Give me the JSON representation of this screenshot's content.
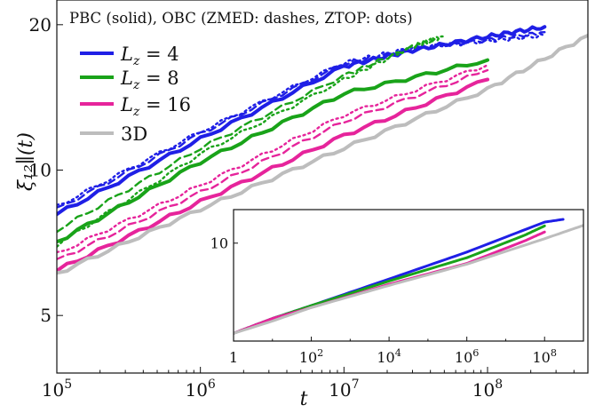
{
  "chart_data": [
    {
      "type": "line",
      "annotation": "PBC (solid), OBC (ZMED: dashes, ZTOP: dots)",
      "xlabel": "t",
      "ylabel": "ξ₁₂∥(t)",
      "xscale": "log",
      "yscale": "log",
      "xlim": [
        100000,
        500000000
      ],
      "ylim": [
        3.8,
        22.5
      ],
      "xticks": [
        {
          "value": 100000,
          "base": "10",
          "exp": "5"
        },
        {
          "value": 1000000,
          "base": "10",
          "exp": "6"
        },
        {
          "value": 10000000,
          "base": "10",
          "exp": "7"
        },
        {
          "value": 100000000,
          "base": "10",
          "exp": "8"
        }
      ],
      "yticks": [
        {
          "value": 5,
          "label": "5"
        },
        {
          "value": 10,
          "label": "10"
        },
        {
          "value": 20,
          "label": "20"
        }
      ],
      "legend": {
        "placement": "upper-left",
        "entries": [
          {
            "name": "L_z = 4",
            "prefix": "L",
            "sub": "z",
            "suffix": " = 4",
            "color": "#1f1fe6"
          },
          {
            "name": "L_z = 8",
            "prefix": "L",
            "sub": "z",
            "suffix": " = 8",
            "color": "#19a319"
          },
          {
            "name": "L_z = 16",
            "prefix": "L",
            "sub": "z",
            "suffix": " = 16",
            "color": "#e6249b"
          },
          {
            "name": "3D",
            "prefix": "3D",
            "sub": "",
            "suffix": "",
            "color": "#bdbdbd"
          }
        ]
      },
      "series": [
        {
          "name": "L_z = 4",
          "style": "solid",
          "color": "#1f1fe6",
          "x": [
            100000,
            1000000,
            10000000,
            30000000,
            100000000,
            250000000
          ],
          "y": [
            8.1,
            11.6,
            16.4,
            17.7,
            18.9,
            19.8
          ]
        },
        {
          "name": "L_z = 4",
          "style": "dashed",
          "color": "#1f1fe6",
          "x": [
            100000,
            1000000,
            10000000,
            30000000,
            100000000,
            250000000
          ],
          "y": [
            8.3,
            11.9,
            16.6,
            17.8,
            18.6,
            19.3
          ]
        },
        {
          "name": "L_z = 4",
          "style": "dotted",
          "color": "#1f1fe6",
          "x": [
            100000,
            1000000,
            10000000,
            30000000,
            100000000,
            250000000
          ],
          "y": [
            8.4,
            12.0,
            16.7,
            17.9,
            18.5,
            19.0
          ]
        },
        {
          "name": "L_z = 8",
          "style": "solid",
          "color": "#19a319",
          "x": [
            100000,
            1000000,
            10000000,
            100000000
          ],
          "y": [
            7.1,
            10.4,
            14.4,
            16.9
          ]
        },
        {
          "name": "L_z = 8",
          "style": "dashed",
          "color": "#19a319",
          "x": [
            100000,
            1000000,
            10000000,
            30000000,
            45000000
          ],
          "y": [
            7.5,
            11.1,
            15.7,
            18.0,
            18.8
          ]
        },
        {
          "name": "L_z = 8",
          "style": "dotted",
          "color": "#19a319",
          "x": [
            100000,
            1000000,
            10000000,
            30000000,
            50000000
          ],
          "y": [
            7.0,
            10.8,
            15.4,
            18.0,
            18.9
          ]
        },
        {
          "name": "L_z = 16",
          "style": "solid",
          "color": "#e6249b",
          "x": [
            100000,
            1000000,
            10000000,
            100000000
          ],
          "y": [
            6.2,
            8.6,
            11.8,
            15.4
          ]
        },
        {
          "name": "L_z = 16",
          "style": "dashed",
          "color": "#e6249b",
          "x": [
            100000,
            1000000,
            10000000,
            100000000
          ],
          "y": [
            6.5,
            9.0,
            12.6,
            16.1
          ]
        },
        {
          "name": "L_z = 16",
          "style": "dotted",
          "color": "#e6249b",
          "x": [
            100000,
            1000000,
            10000000,
            100000000
          ],
          "y": [
            6.7,
            9.3,
            13.0,
            16.5
          ]
        },
        {
          "name": "3D",
          "style": "solid",
          "color": "#bdbdbd",
          "x": [
            100000,
            1000000,
            10000000,
            100000000,
            500000000
          ],
          "y": [
            6.1,
            8.3,
            11.1,
            14.7,
            19.0
          ]
        }
      ]
    },
    {
      "type": "line",
      "role": "inset",
      "xscale": "log",
      "yscale": "log",
      "xlim": [
        1,
        1000000000
      ],
      "ylim": [
        1.0,
        22
      ],
      "xticks": [
        {
          "value": 1,
          "base": "1",
          "exp": ""
        },
        {
          "value": 100,
          "base": "10",
          "exp": "2"
        },
        {
          "value": 10000,
          "base": "10",
          "exp": "4"
        },
        {
          "value": 1000000,
          "base": "10",
          "exp": "6"
        },
        {
          "value": 100000000,
          "base": "10",
          "exp": "8"
        }
      ],
      "yticks": [
        {
          "value": 10,
          "label": "10"
        }
      ],
      "series": [
        {
          "name": "L_z = 4",
          "style": "solid",
          "color": "#1f1fe6",
          "x": [
            1,
            10,
            100,
            10000,
            1000000,
            100000000,
            300000000
          ],
          "y": [
            1.2,
            1.7,
            2.3,
            4.3,
            8.1,
            16.4,
            17.5
          ]
        },
        {
          "name": "L_z = 8",
          "style": "solid",
          "color": "#19a319",
          "x": [
            1,
            10,
            100,
            10000,
            1000000,
            30000000,
            100000000
          ],
          "y": [
            1.2,
            1.7,
            2.3,
            4.1,
            7.1,
            12.0,
            15.0
          ]
        },
        {
          "name": "L_z = 16",
          "style": "solid",
          "color": "#e6249b",
          "x": [
            1,
            10,
            100,
            10000,
            1000000,
            30000000,
            100000000
          ],
          "y": [
            1.2,
            1.7,
            2.2,
            3.8,
            6.2,
            10.5,
            13.0
          ]
        },
        {
          "name": "3D",
          "style": "solid",
          "color": "#bdbdbd",
          "x": [
            1,
            10,
            100,
            10000,
            1000000,
            100000000,
            1000000000
          ],
          "y": [
            1.2,
            1.6,
            2.2,
            3.7,
            6.1,
            11.1,
            15.2
          ]
        }
      ]
    }
  ]
}
